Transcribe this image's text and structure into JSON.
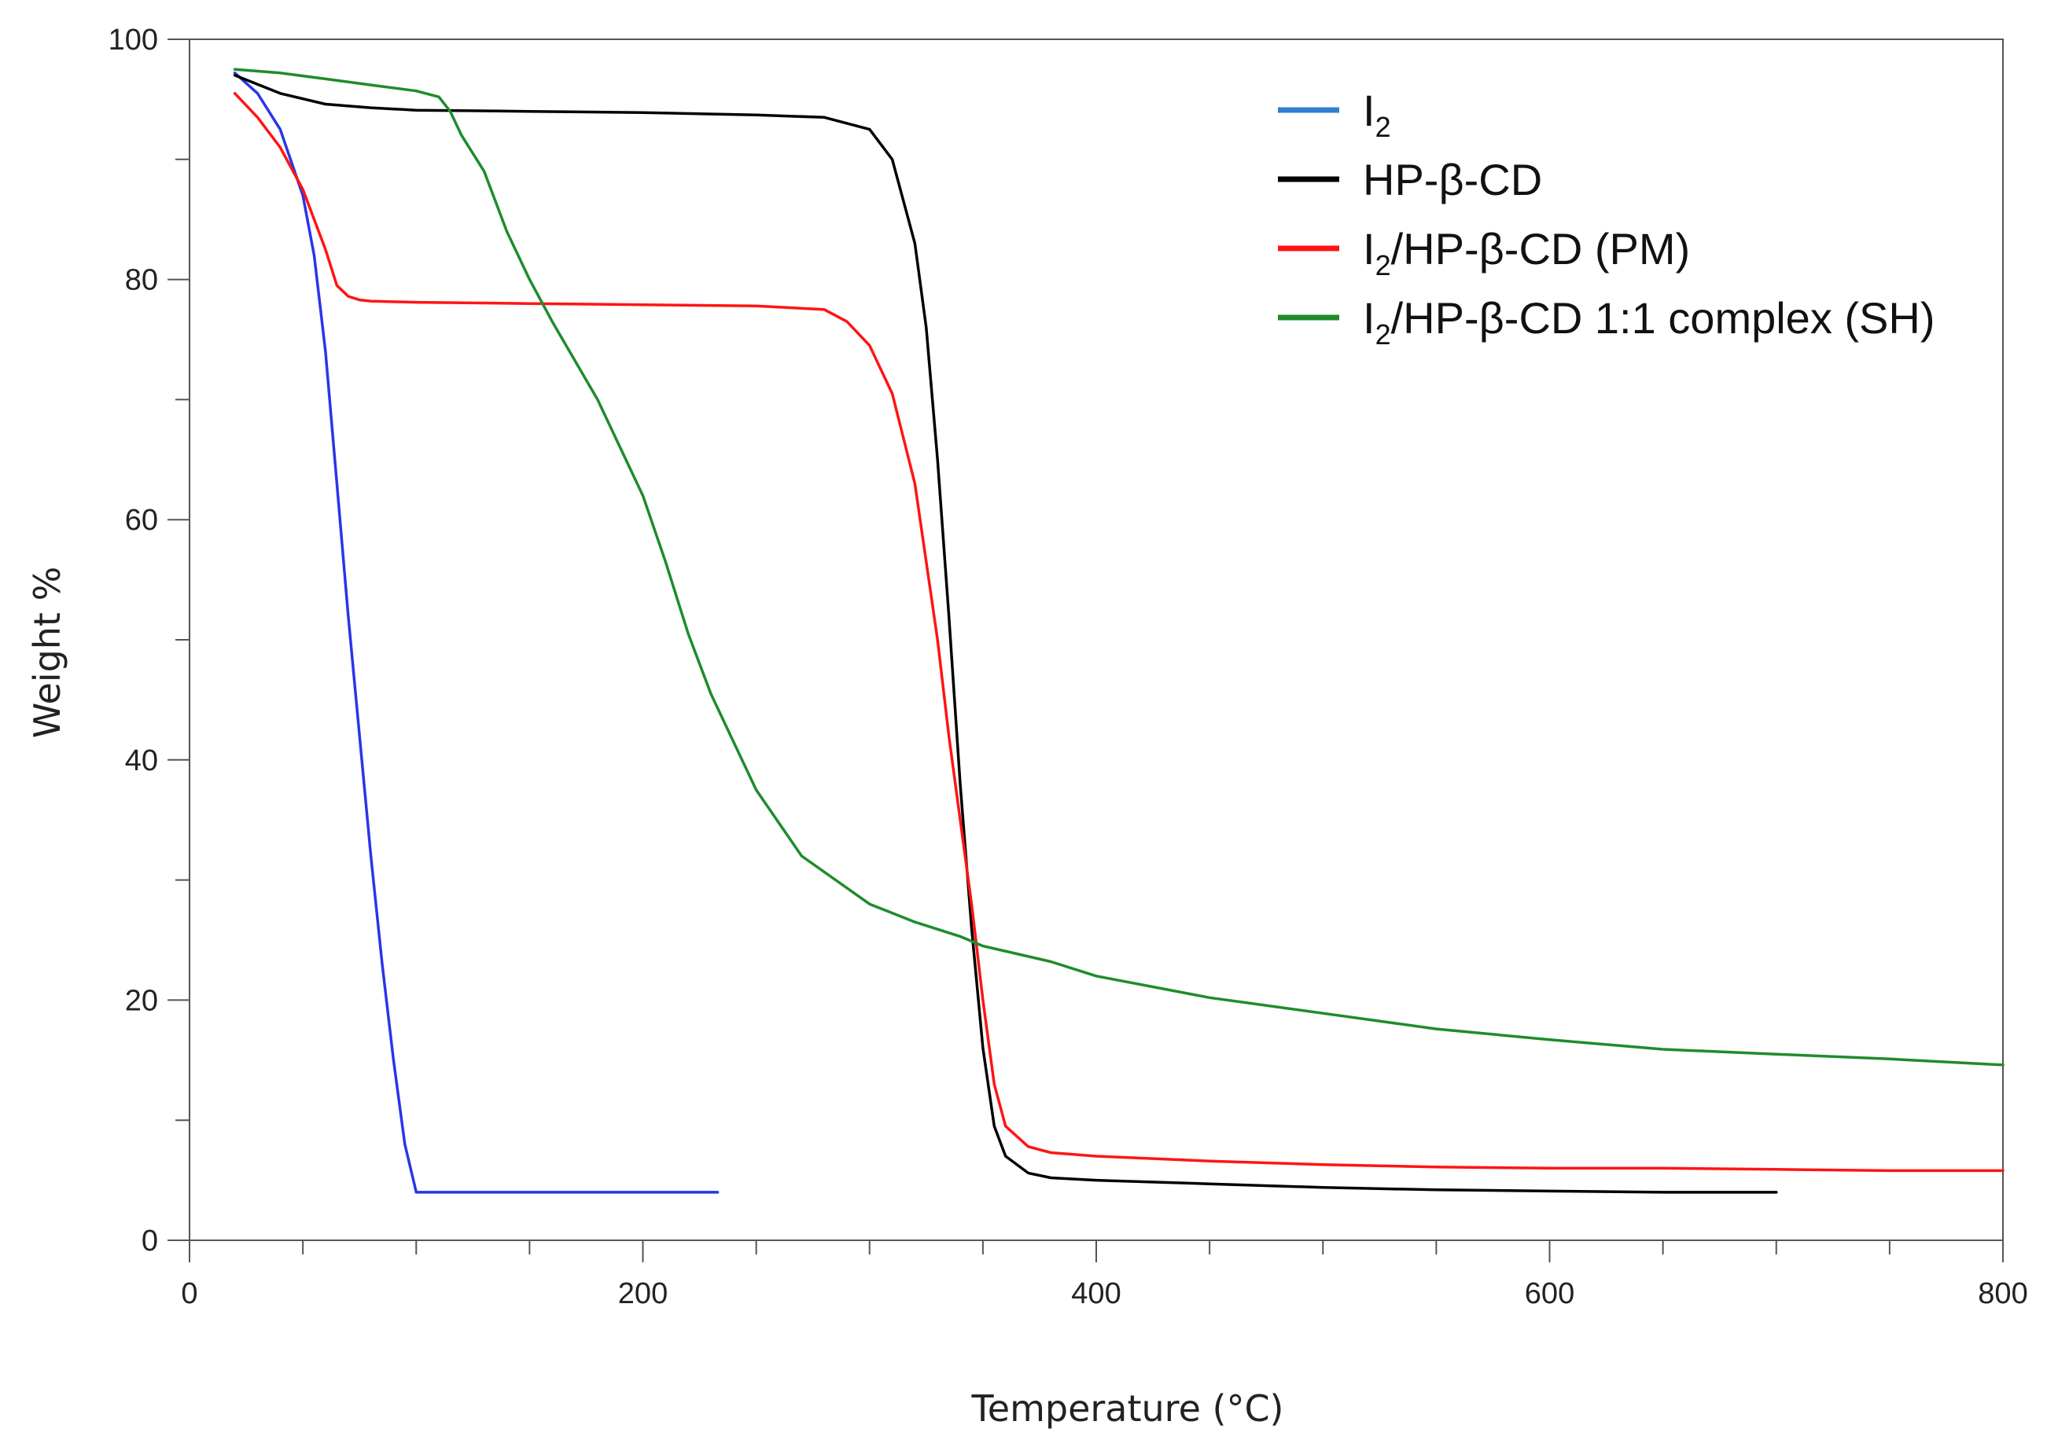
{
  "chart_data": {
    "type": "line",
    "title": "",
    "xlabel": "Temperature (°C)",
    "ylabel": "Weight %",
    "xlim": [
      0,
      800
    ],
    "ylim": [
      0,
      100
    ],
    "x_major_ticks": [
      0,
      200,
      400,
      600,
      800
    ],
    "x_minor_step": 50,
    "y_major_ticks": [
      0,
      20,
      40,
      60,
      80,
      100
    ],
    "y_minor_step": 10,
    "grid": false,
    "legend_position": "top-right",
    "series": [
      {
        "name": "I2",
        "label_main": "I",
        "label_sub": "2",
        "label_rest": "",
        "color": "#2a35e8",
        "legend_color": "#2e7fd0",
        "x": [
          20,
          30,
          40,
          50,
          55,
          60,
          65,
          70,
          75,
          80,
          85,
          90,
          95,
          100,
          110,
          150,
          200,
          233
        ],
        "y": [
          97.2,
          95.5,
          92.5,
          87,
          82,
          74,
          63,
          52,
          42,
          32,
          23,
          15,
          8,
          4,
          4,
          4,
          4,
          4
        ]
      },
      {
        "name": "HP-β-CD",
        "label_main": "HP-β-CD",
        "label_sub": "",
        "label_rest": "",
        "color": "#000000",
        "legend_color": "#000000",
        "x": [
          20,
          40,
          60,
          80,
          100,
          150,
          200,
          250,
          280,
          300,
          310,
          320,
          325,
          330,
          335,
          340,
          345,
          350,
          355,
          360,
          370,
          380,
          400,
          450,
          500,
          550,
          600,
          650,
          700
        ],
        "y": [
          97,
          95.5,
          94.6,
          94.3,
          94.1,
          94,
          93.9,
          93.7,
          93.5,
          92.5,
          90,
          83,
          76,
          65,
          52,
          38,
          26,
          16,
          9.5,
          7,
          5.6,
          5.2,
          5,
          4.7,
          4.4,
          4.2,
          4.1,
          4.0,
          4.0
        ]
      },
      {
        "name": "I2/HP-β-CD (PM)",
        "label_main": "I",
        "label_sub": "2",
        "label_rest": "/HP-β-CD (PM)",
        "color": "#ff1414",
        "legend_color": "#ff1414",
        "x": [
          20,
          30,
          40,
          50,
          60,
          65,
          70,
          75,
          80,
          100,
          150,
          200,
          250,
          280,
          290,
          300,
          310,
          320,
          330,
          335,
          340,
          345,
          350,
          355,
          360,
          370,
          380,
          400,
          450,
          500,
          550,
          600,
          650,
          700,
          750,
          800
        ],
        "y": [
          95.5,
          93.5,
          91,
          87.5,
          82.5,
          79.5,
          78.6,
          78.3,
          78.2,
          78.1,
          78,
          77.9,
          77.8,
          77.5,
          76.5,
          74.5,
          70.5,
          63,
          50,
          42,
          35,
          28,
          20,
          13,
          9.5,
          7.8,
          7.3,
          7,
          6.6,
          6.3,
          6.1,
          6,
          6,
          5.9,
          5.8,
          5.8
        ]
      },
      {
        "name": "I2/HP-β-CD 1:1 complex (SH)",
        "label_main": "I",
        "label_sub": "2",
        "label_rest": "/HP-β-CD 1:1 complex (SH)",
        "color": "#1e8c2c",
        "legend_color": "#1e8c2c",
        "x": [
          20,
          40,
          60,
          80,
          100,
          110,
          115,
          120,
          130,
          140,
          150,
          160,
          180,
          200,
          210,
          220,
          230,
          250,
          270,
          300,
          320,
          340,
          350,
          380,
          400,
          450,
          500,
          550,
          600,
          650,
          700,
          750,
          800
        ],
        "y": [
          97.5,
          97.2,
          96.7,
          96.2,
          95.7,
          95.2,
          94,
          92,
          89,
          84,
          80,
          76.5,
          70,
          62,
          56.5,
          50.5,
          45.5,
          37.5,
          32,
          28,
          26.5,
          25.3,
          24.5,
          23.2,
          22,
          20.2,
          18.9,
          17.6,
          16.7,
          15.9,
          15.5,
          15.1,
          14.6
        ]
      }
    ]
  }
}
